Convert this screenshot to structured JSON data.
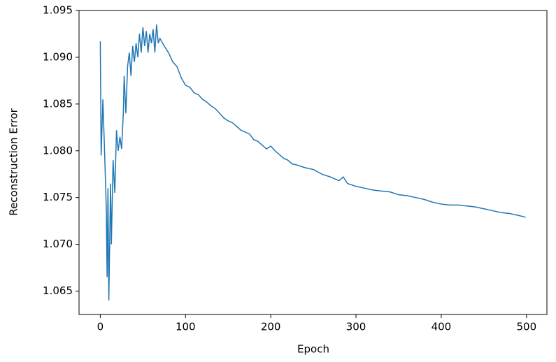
{
  "chart_data": {
    "type": "line",
    "xlabel": "Epoch",
    "ylabel": "Reconstruction Error",
    "x": [
      0,
      1,
      3,
      5,
      7,
      8,
      9,
      10,
      11,
      12,
      13,
      15,
      17,
      19,
      21,
      23,
      25,
      27,
      28,
      30,
      32,
      34,
      36,
      38,
      40,
      42,
      44,
      46,
      48,
      50,
      52,
      54,
      56,
      58,
      60,
      62,
      64,
      66,
      68,
      70,
      75,
      80,
      85,
      90,
      95,
      100,
      105,
      110,
      115,
      120,
      125,
      130,
      135,
      140,
      145,
      150,
      155,
      160,
      165,
      170,
      175,
      180,
      185,
      190,
      195,
      200,
      205,
      210,
      215,
      220,
      225,
      230,
      240,
      250,
      260,
      270,
      280,
      285,
      290,
      300,
      310,
      320,
      330,
      340,
      350,
      360,
      370,
      380,
      390,
      400,
      410,
      420,
      430,
      440,
      450,
      460,
      470,
      480,
      490,
      499
    ],
    "series": [
      {
        "color": "#1f77b4",
        "values": [
          1.0917,
          1.0795,
          1.0855,
          1.08,
          1.074,
          1.0665,
          1.076,
          1.064,
          1.07,
          1.0765,
          1.07,
          1.079,
          1.0755,
          1.0822,
          1.08,
          1.0815,
          1.0802,
          1.084,
          1.088,
          1.084,
          1.089,
          1.0905,
          1.088,
          1.0912,
          1.0895,
          1.0915,
          1.09,
          1.0925,
          1.0905,
          1.0932,
          1.0912,
          1.0928,
          1.0905,
          1.0925,
          1.0915,
          1.093,
          1.0905,
          1.0935,
          1.0915,
          1.092,
          1.0912,
          1.0905,
          1.0895,
          1.089,
          1.0878,
          1.087,
          1.0868,
          1.0862,
          1.086,
          1.0855,
          1.0852,
          1.0848,
          1.0845,
          1.084,
          1.0835,
          1.0832,
          1.083,
          1.0826,
          1.0822,
          1.082,
          1.0818,
          1.0812,
          1.081,
          1.0806,
          1.0802,
          1.0805,
          1.08,
          1.0796,
          1.0792,
          1.079,
          1.0786,
          1.0785,
          1.0782,
          1.078,
          1.0775,
          1.0772,
          1.0768,
          1.0772,
          1.0765,
          1.0762,
          1.076,
          1.0758,
          1.0757,
          1.0756,
          1.0753,
          1.0752,
          1.075,
          1.0748,
          1.0745,
          1.0743,
          1.0742,
          1.0742,
          1.0741,
          1.074,
          1.0738,
          1.0736,
          1.0734,
          1.0733,
          1.0731,
          1.0729
        ]
      }
    ],
    "xlim": [
      -24.95,
      523.95
    ],
    "xticks": [
      0,
      100,
      200,
      300,
      400,
      500
    ],
    "ylim": [
      1.0625,
      1.095
    ],
    "yticks": [
      1.065,
      {
        "value": 1.07,
        "label": "1.070"
      },
      1.075,
      {
        "value": 1.08,
        "label": "1.080"
      },
      1.085,
      {
        "value": 1.09,
        "label": "1.090"
      },
      1.095
    ],
    "grid": false
  }
}
